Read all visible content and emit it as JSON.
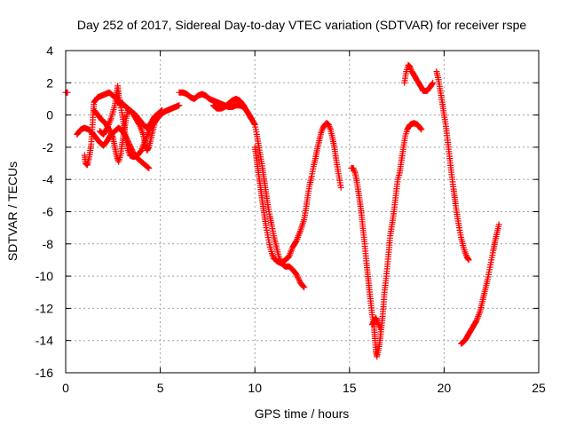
{
  "chart_data": {
    "type": "scatter",
    "title": "Day 252 of 2017, Sidereal Day-to-day VTEC variation (SDTVAR) for receiver rspe",
    "xlabel": "GPS time / hours",
    "ylabel": "SDTVAR / TECUs",
    "xlim": [
      0,
      25
    ],
    "ylim": [
      -16,
      4
    ],
    "xticks": [
      0,
      5,
      10,
      15,
      20,
      25
    ],
    "yticks": [
      -16,
      -14,
      -12,
      -10,
      -8,
      -6,
      -4,
      -2,
      0,
      2,
      4
    ],
    "grid": true,
    "legend": "none",
    "marker": "plus",
    "color": "#ff0000",
    "series": [
      {
        "segments": [
          [
            [
              0.0,
              1.4
            ],
            [
              0.1,
              1.4
            ]
          ],
          [
            [
              0.6,
              -1.2
            ],
            [
              0.8,
              -0.9
            ],
            [
              1.0,
              -0.8
            ],
            [
              1.2,
              -0.9
            ],
            [
              1.4,
              -1.1
            ],
            [
              1.6,
              -1.4
            ],
            [
              1.8,
              -1.7
            ],
            [
              2.0,
              -1.9
            ],
            [
              2.2,
              -1.6
            ],
            [
              2.4,
              -1.2
            ],
            [
              2.6,
              -1.0
            ],
            [
              2.8,
              -0.8
            ],
            [
              3.0,
              -1.0
            ],
            [
              3.2,
              -1.4
            ],
            [
              3.4,
              -1.9
            ],
            [
              3.6,
              -2.4
            ],
            [
              3.8,
              -2.7
            ],
            [
              4.0,
              -2.9
            ],
            [
              4.2,
              -3.1
            ],
            [
              4.4,
              -3.3
            ]
          ],
          [
            [
              1.0,
              -2.5
            ],
            [
              1.05,
              -3.0
            ],
            [
              1.15,
              -3.1
            ],
            [
              1.25,
              -2.6
            ],
            [
              1.35,
              -1.8
            ],
            [
              1.4,
              -0.9
            ],
            [
              1.45,
              0.0
            ],
            [
              1.5,
              0.8
            ],
            [
              1.7,
              1.1
            ],
            [
              1.9,
              1.2
            ],
            [
              2.1,
              1.3
            ],
            [
              2.3,
              1.4
            ],
            [
              2.5,
              1.2
            ],
            [
              2.7,
              1.0
            ],
            [
              2.9,
              0.6
            ],
            [
              3.0,
              0.0
            ],
            [
              3.1,
              -0.8
            ],
            [
              3.2,
              -1.6
            ],
            [
              3.3,
              -2.2
            ],
            [
              3.4,
              -2.5
            ],
            [
              3.6,
              -2.6
            ],
            [
              3.8,
              -2.5
            ],
            [
              4.0,
              -2.2
            ],
            [
              4.2,
              -1.6
            ],
            [
              4.4,
              -1.0
            ],
            [
              4.6,
              -0.6
            ],
            [
              4.8,
              -0.3
            ],
            [
              5.0,
              0.0
            ],
            [
              5.2,
              0.2
            ],
            [
              5.4,
              0.3
            ],
            [
              5.6,
              0.4
            ],
            [
              5.8,
              0.5
            ],
            [
              6.0,
              0.6
            ]
          ],
          [
            [
              1.5,
              0.3
            ],
            [
              1.7,
              0.0
            ],
            [
              1.9,
              -0.3
            ],
            [
              2.1,
              -0.5
            ],
            [
              2.3,
              -0.9
            ],
            [
              2.5,
              -1.4
            ],
            [
              2.6,
              -2.0
            ],
            [
              2.7,
              -2.6
            ],
            [
              2.8,
              -2.9
            ],
            [
              2.9,
              -2.5
            ],
            [
              3.0,
              -1.7
            ],
            [
              3.1,
              -0.9
            ],
            [
              3.2,
              -0.2
            ],
            [
              3.3,
              0.3
            ],
            [
              3.5,
              0.2
            ],
            [
              3.7,
              0.0
            ],
            [
              3.9,
              -0.3
            ],
            [
              4.1,
              -0.6
            ],
            [
              4.3,
              -0.8
            ],
            [
              4.5,
              -0.5
            ],
            [
              4.7,
              -0.1
            ],
            [
              4.9,
              0.1
            ],
            [
              5.1,
              0.3
            ]
          ],
          [
            [
              1.8,
              -1.0
            ],
            [
              2.0,
              -1.2
            ],
            [
              2.2,
              -0.8
            ],
            [
              2.4,
              -0.2
            ],
            [
              2.6,
              0.6
            ],
            [
              2.7,
              1.4
            ],
            [
              2.75,
              1.8
            ],
            [
              2.8,
              1.2
            ],
            [
              2.9,
              0.8
            ],
            [
              3.1,
              0.6
            ],
            [
              3.3,
              0.4
            ],
            [
              3.5,
              0.2
            ],
            [
              3.7,
              -0.2
            ],
            [
              3.9,
              -0.6
            ],
            [
              4.1,
              -1.2
            ],
            [
              4.2,
              -1.8
            ],
            [
              4.3,
              -2.2
            ],
            [
              4.4,
              -2.0
            ],
            [
              4.5,
              -1.5
            ],
            [
              4.6,
              -1.0
            ],
            [
              4.7,
              -0.5
            ],
            [
              4.8,
              -0.2
            ]
          ],
          [
            [
              6.0,
              1.4
            ],
            [
              6.2,
              1.4
            ],
            [
              6.4,
              1.3
            ],
            [
              6.6,
              1.1
            ],
            [
              6.8,
              1.0
            ],
            [
              7.0,
              1.2
            ],
            [
              7.2,
              1.3
            ],
            [
              7.4,
              1.2
            ],
            [
              7.6,
              1.0
            ],
            [
              7.8,
              0.9
            ],
            [
              8.0,
              0.8
            ],
            [
              8.2,
              0.7
            ],
            [
              8.4,
              0.6
            ],
            [
              8.6,
              0.5
            ],
            [
              8.8,
              0.5
            ],
            [
              9.0,
              0.6
            ],
            [
              9.2,
              0.6
            ],
            [
              9.4,
              0.5
            ],
            [
              9.6,
              0.2
            ],
            [
              9.8,
              -0.2
            ]
          ],
          [
            [
              7.8,
              0.6
            ],
            [
              8.0,
              0.4
            ],
            [
              8.2,
              0.4
            ],
            [
              8.4,
              0.5
            ],
            [
              8.6,
              0.7
            ],
            [
              8.8,
              0.9
            ],
            [
              9.0,
              1.0
            ],
            [
              9.2,
              0.9
            ],
            [
              9.4,
              0.6
            ],
            [
              9.6,
              0.2
            ],
            [
              9.8,
              -0.2
            ],
            [
              10.0,
              -0.6
            ],
            [
              10.1,
              -1.2
            ],
            [
              10.2,
              -1.9
            ],
            [
              10.3,
              -2.6
            ],
            [
              10.4,
              -3.3
            ],
            [
              10.5,
              -4.1
            ],
            [
              10.6,
              -4.9
            ],
            [
              10.7,
              -5.7
            ],
            [
              10.8,
              -6.3
            ],
            [
              10.9,
              -6.9
            ],
            [
              11.0,
              -7.5
            ],
            [
              11.1,
              -8.0
            ],
            [
              11.2,
              -8.5
            ],
            [
              11.3,
              -8.9
            ],
            [
              11.4,
              -9.2
            ],
            [
              11.6,
              -9.4
            ],
            [
              11.8,
              -9.4
            ],
            [
              12.0,
              -9.6
            ],
            [
              12.2,
              -9.9
            ],
            [
              12.4,
              -10.4
            ],
            [
              12.6,
              -10.7
            ]
          ],
          [
            [
              10.0,
              -2.0
            ],
            [
              10.1,
              -2.8
            ],
            [
              10.2,
              -3.7
            ],
            [
              10.3,
              -4.5
            ],
            [
              10.4,
              -5.4
            ],
            [
              10.5,
              -6.2
            ],
            [
              10.6,
              -7.0
            ],
            [
              10.7,
              -7.6
            ],
            [
              10.8,
              -8.2
            ],
            [
              10.9,
              -8.6
            ],
            [
              11.0,
              -8.9
            ],
            [
              11.2,
              -9.1
            ],
            [
              11.4,
              -9.2
            ],
            [
              11.6,
              -9.0
            ],
            [
              11.8,
              -8.8
            ],
            [
              12.0,
              -8.2
            ],
            [
              12.2,
              -7.8
            ],
            [
              12.4,
              -7.2
            ],
            [
              12.6,
              -6.5
            ],
            [
              12.7,
              -5.8
            ],
            [
              12.8,
              -5.0
            ],
            [
              12.9,
              -4.3
            ],
            [
              13.0,
              -3.8
            ],
            [
              13.1,
              -3.2
            ],
            [
              13.2,
              -2.7
            ],
            [
              13.3,
              -2.1
            ],
            [
              13.4,
              -1.6
            ],
            [
              13.5,
              -1.1
            ],
            [
              13.6,
              -0.8
            ],
            [
              13.7,
              -0.6
            ],
            [
              13.8,
              -0.5
            ],
            [
              13.9,
              -0.6
            ],
            [
              14.0,
              -0.9
            ],
            [
              14.1,
              -1.4
            ],
            [
              14.2,
              -2.0
            ],
            [
              14.3,
              -2.8
            ],
            [
              14.4,
              -3.5
            ],
            [
              14.5,
              -4.2
            ],
            [
              14.55,
              -4.5
            ]
          ],
          [
            [
              15.1,
              -3.3
            ],
            [
              15.2,
              -3.3
            ],
            [
              15.3,
              -3.6
            ],
            [
              15.4,
              -4.2
            ],
            [
              15.5,
              -5.0
            ],
            [
              15.6,
              -5.8
            ],
            [
              15.7,
              -6.9
            ],
            [
              15.8,
              -8.0
            ],
            [
              15.9,
              -9.2
            ],
            [
              16.0,
              -10.3
            ],
            [
              16.1,
              -11.4
            ],
            [
              16.2,
              -12.4
            ],
            [
              16.3,
              -13.1
            ],
            [
              16.35,
              -14.0
            ],
            [
              16.4,
              -14.7
            ],
            [
              16.45,
              -15.0
            ],
            [
              16.55,
              -14.5
            ],
            [
              16.65,
              -13.6
            ],
            [
              16.75,
              -12.5
            ],
            [
              16.85,
              -11.0
            ],
            [
              16.95,
              -10.0
            ],
            [
              17.05,
              -8.8
            ],
            [
              17.15,
              -7.5
            ],
            [
              17.25,
              -6.8
            ],
            [
              17.35,
              -6.0
            ],
            [
              17.45,
              -5.0
            ],
            [
              17.55,
              -4.0
            ],
            [
              17.65,
              -3.6
            ],
            [
              17.75,
              -2.8
            ],
            [
              17.85,
              -2.0
            ],
            [
              17.95,
              -1.3
            ],
            [
              18.05,
              -0.9
            ],
            [
              18.2,
              -0.6
            ],
            [
              18.4,
              -0.5
            ],
            [
              18.6,
              -0.6
            ],
            [
              18.8,
              -0.9
            ]
          ],
          [
            [
              16.2,
              -13.0
            ],
            [
              16.4,
              -12.6
            ],
            [
              16.6,
              -13.2
            ]
          ],
          [
            [
              17.9,
              2.0
            ],
            [
              18.0,
              2.7
            ],
            [
              18.1,
              3.1
            ],
            [
              18.2,
              3.0
            ],
            [
              18.3,
              2.7
            ],
            [
              18.5,
              2.3
            ],
            [
              18.7,
              1.9
            ],
            [
              18.9,
              1.5
            ],
            [
              19.1,
              1.5
            ],
            [
              19.3,
              1.8
            ],
            [
              19.4,
              2.0
            ]
          ],
          [
            [
              19.6,
              2.7
            ],
            [
              19.7,
              2.2
            ],
            [
              19.8,
              1.5
            ],
            [
              19.9,
              0.8
            ],
            [
              20.0,
              0.0
            ],
            [
              20.1,
              -0.7
            ],
            [
              20.2,
              -1.7
            ],
            [
              20.3,
              -2.7
            ],
            [
              20.4,
              -3.7
            ],
            [
              20.5,
              -4.6
            ],
            [
              20.6,
              -5.5
            ],
            [
              20.7,
              -6.3
            ],
            [
              20.8,
              -7.0
            ],
            [
              20.9,
              -7.6
            ],
            [
              21.0,
              -8.1
            ],
            [
              21.1,
              -8.5
            ],
            [
              21.2,
              -8.8
            ],
            [
              21.3,
              -9.0
            ]
          ],
          [
            [
              20.9,
              -14.2
            ],
            [
              21.1,
              -14.0
            ],
            [
              21.3,
              -13.6
            ],
            [
              21.5,
              -13.2
            ],
            [
              21.7,
              -12.8
            ],
            [
              21.9,
              -12.2
            ],
            [
              22.0,
              -11.7
            ],
            [
              22.1,
              -11.2
            ],
            [
              22.2,
              -10.7
            ],
            [
              22.3,
              -10.2
            ],
            [
              22.4,
              -9.6
            ],
            [
              22.5,
              -9.0
            ],
            [
              22.6,
              -8.4
            ],
            [
              22.7,
              -7.8
            ],
            [
              22.8,
              -7.3
            ],
            [
              22.9,
              -6.8
            ]
          ]
        ]
      }
    ]
  }
}
